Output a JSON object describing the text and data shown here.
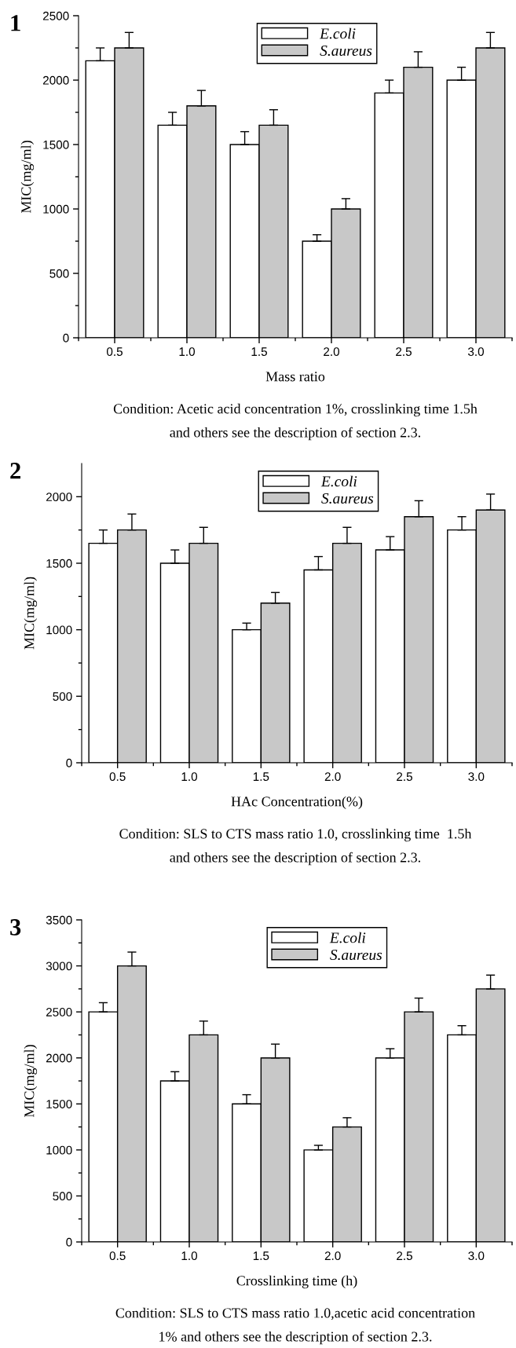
{
  "chart_data": [
    {
      "type": "bar",
      "categories": [
        "0.5",
        "1.0",
        "1.5",
        "2.0",
        "2.5",
        "3.0"
      ],
      "xlabel": "Mass ratio",
      "ylabel": "MIC(mg/ml)",
      "ylim": [
        0,
        2500
      ],
      "yticks": [
        0,
        500,
        1000,
        1500,
        2000,
        2500
      ],
      "legend": "top",
      "grid": false,
      "annotations": [
        "1",
        "Condition: Acetic acid concentration 1%, crosslinking time 1.5h",
        "and others see the description of section 2.3."
      ],
      "series": [
        {
          "name": "E.coli",
          "color": "#ffffff",
          "values": [
            2150,
            1650,
            1500,
            750,
            1900,
            2000
          ],
          "errors": [
            [
              2150,
              2250
            ],
            [
              1650,
              1750
            ],
            [
              1500,
              1600
            ],
            [
              750,
              800
            ],
            [
              1900,
              2000
            ],
            [
              2000,
              2100
            ]
          ]
        },
        {
          "name": "S.aureus",
          "color": "#c8c8c8",
          "values": [
            2250,
            1800,
            1650,
            1000,
            2100,
            2250
          ],
          "errors": [
            [
              2250,
              2370
            ],
            [
              1800,
              1920
            ],
            [
              1650,
              1770
            ],
            [
              1000,
              1080
            ],
            [
              2100,
              2220
            ],
            [
              2250,
              2370
            ]
          ]
        }
      ]
    },
    {
      "type": "bar",
      "categories": [
        "0.5",
        "1.0",
        "1.5",
        "2.0",
        "2.5",
        "3.0"
      ],
      "xlabel": "HAc Concentration(%)",
      "ylabel": "MIC(mg/ml)",
      "ylim": [
        0,
        2250
      ],
      "yticks": [
        0,
        500,
        1000,
        1500,
        2000
      ],
      "legend": "top",
      "grid": false,
      "annotations": [
        "2",
        "Condition: SLS to CTS mass ratio 1.0, crosslinking time  1.5h",
        "and others see the description of section 2.3."
      ],
      "series": [
        {
          "name": "E.coli",
          "color": "#ffffff",
          "values": [
            1650,
            1500,
            1000,
            1450,
            1600,
            1750
          ],
          "errors": [
            [
              1650,
              1750
            ],
            [
              1500,
              1600
            ],
            [
              1000,
              1050
            ],
            [
              1450,
              1550
            ],
            [
              1600,
              1700
            ],
            [
              1750,
              1850
            ]
          ]
        },
        {
          "name": "S.aureus",
          "color": "#c8c8c8",
          "values": [
            1750,
            1650,
            1200,
            1650,
            1850,
            1900
          ],
          "errors": [
            [
              1750,
              1870
            ],
            [
              1650,
              1770
            ],
            [
              1200,
              1280
            ],
            [
              1650,
              1770
            ],
            [
              1850,
              1970
            ],
            [
              1900,
              2020
            ]
          ]
        }
      ]
    },
    {
      "type": "bar",
      "categories": [
        "0.5",
        "1.0",
        "1.5",
        "2.0",
        "2.5",
        "3.0"
      ],
      "xlabel": "Crosslinking time (h)",
      "ylabel": "MIC(mg/ml)",
      "ylim": [
        0,
        3500
      ],
      "yticks": [
        0,
        500,
        1000,
        1500,
        2000,
        2500,
        3000,
        3500
      ],
      "legend": "top",
      "grid": false,
      "annotations": [
        "3",
        "Condition: SLS to CTS mass ratio 1.0,acetic acid concentration",
        "1% and others see the description of section 2.3."
      ],
      "series": [
        {
          "name": "E.coli",
          "color": "#ffffff",
          "values": [
            2500,
            1750,
            1500,
            1000,
            2000,
            2250
          ],
          "errors": [
            [
              2500,
              2600
            ],
            [
              1750,
              1850
            ],
            [
              1500,
              1600
            ],
            [
              1000,
              1050
            ],
            [
              2000,
              2100
            ],
            [
              2250,
              2350
            ]
          ]
        },
        {
          "name": "S.aureus",
          "color": "#c8c8c8",
          "values": [
            3000,
            2250,
            2000,
            1250,
            2500,
            2750
          ],
          "errors": [
            [
              3000,
              3150
            ],
            [
              2250,
              2400
            ],
            [
              2000,
              2150
            ],
            [
              1250,
              1350
            ],
            [
              2500,
              2650
            ],
            [
              2750,
              2900
            ]
          ]
        }
      ]
    }
  ]
}
